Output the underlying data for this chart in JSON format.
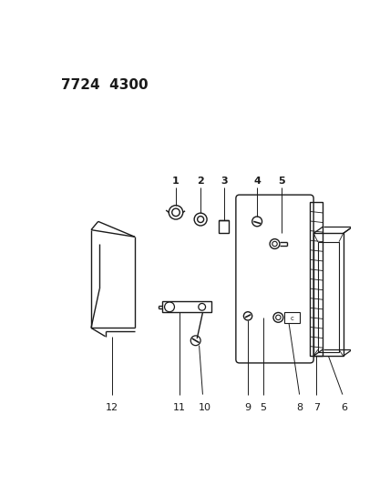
{
  "title": "7724  4300",
  "background_color": "#ffffff",
  "line_color": "#1a1a1a",
  "figsize": [
    4.28,
    5.33
  ],
  "dpi": 100
}
